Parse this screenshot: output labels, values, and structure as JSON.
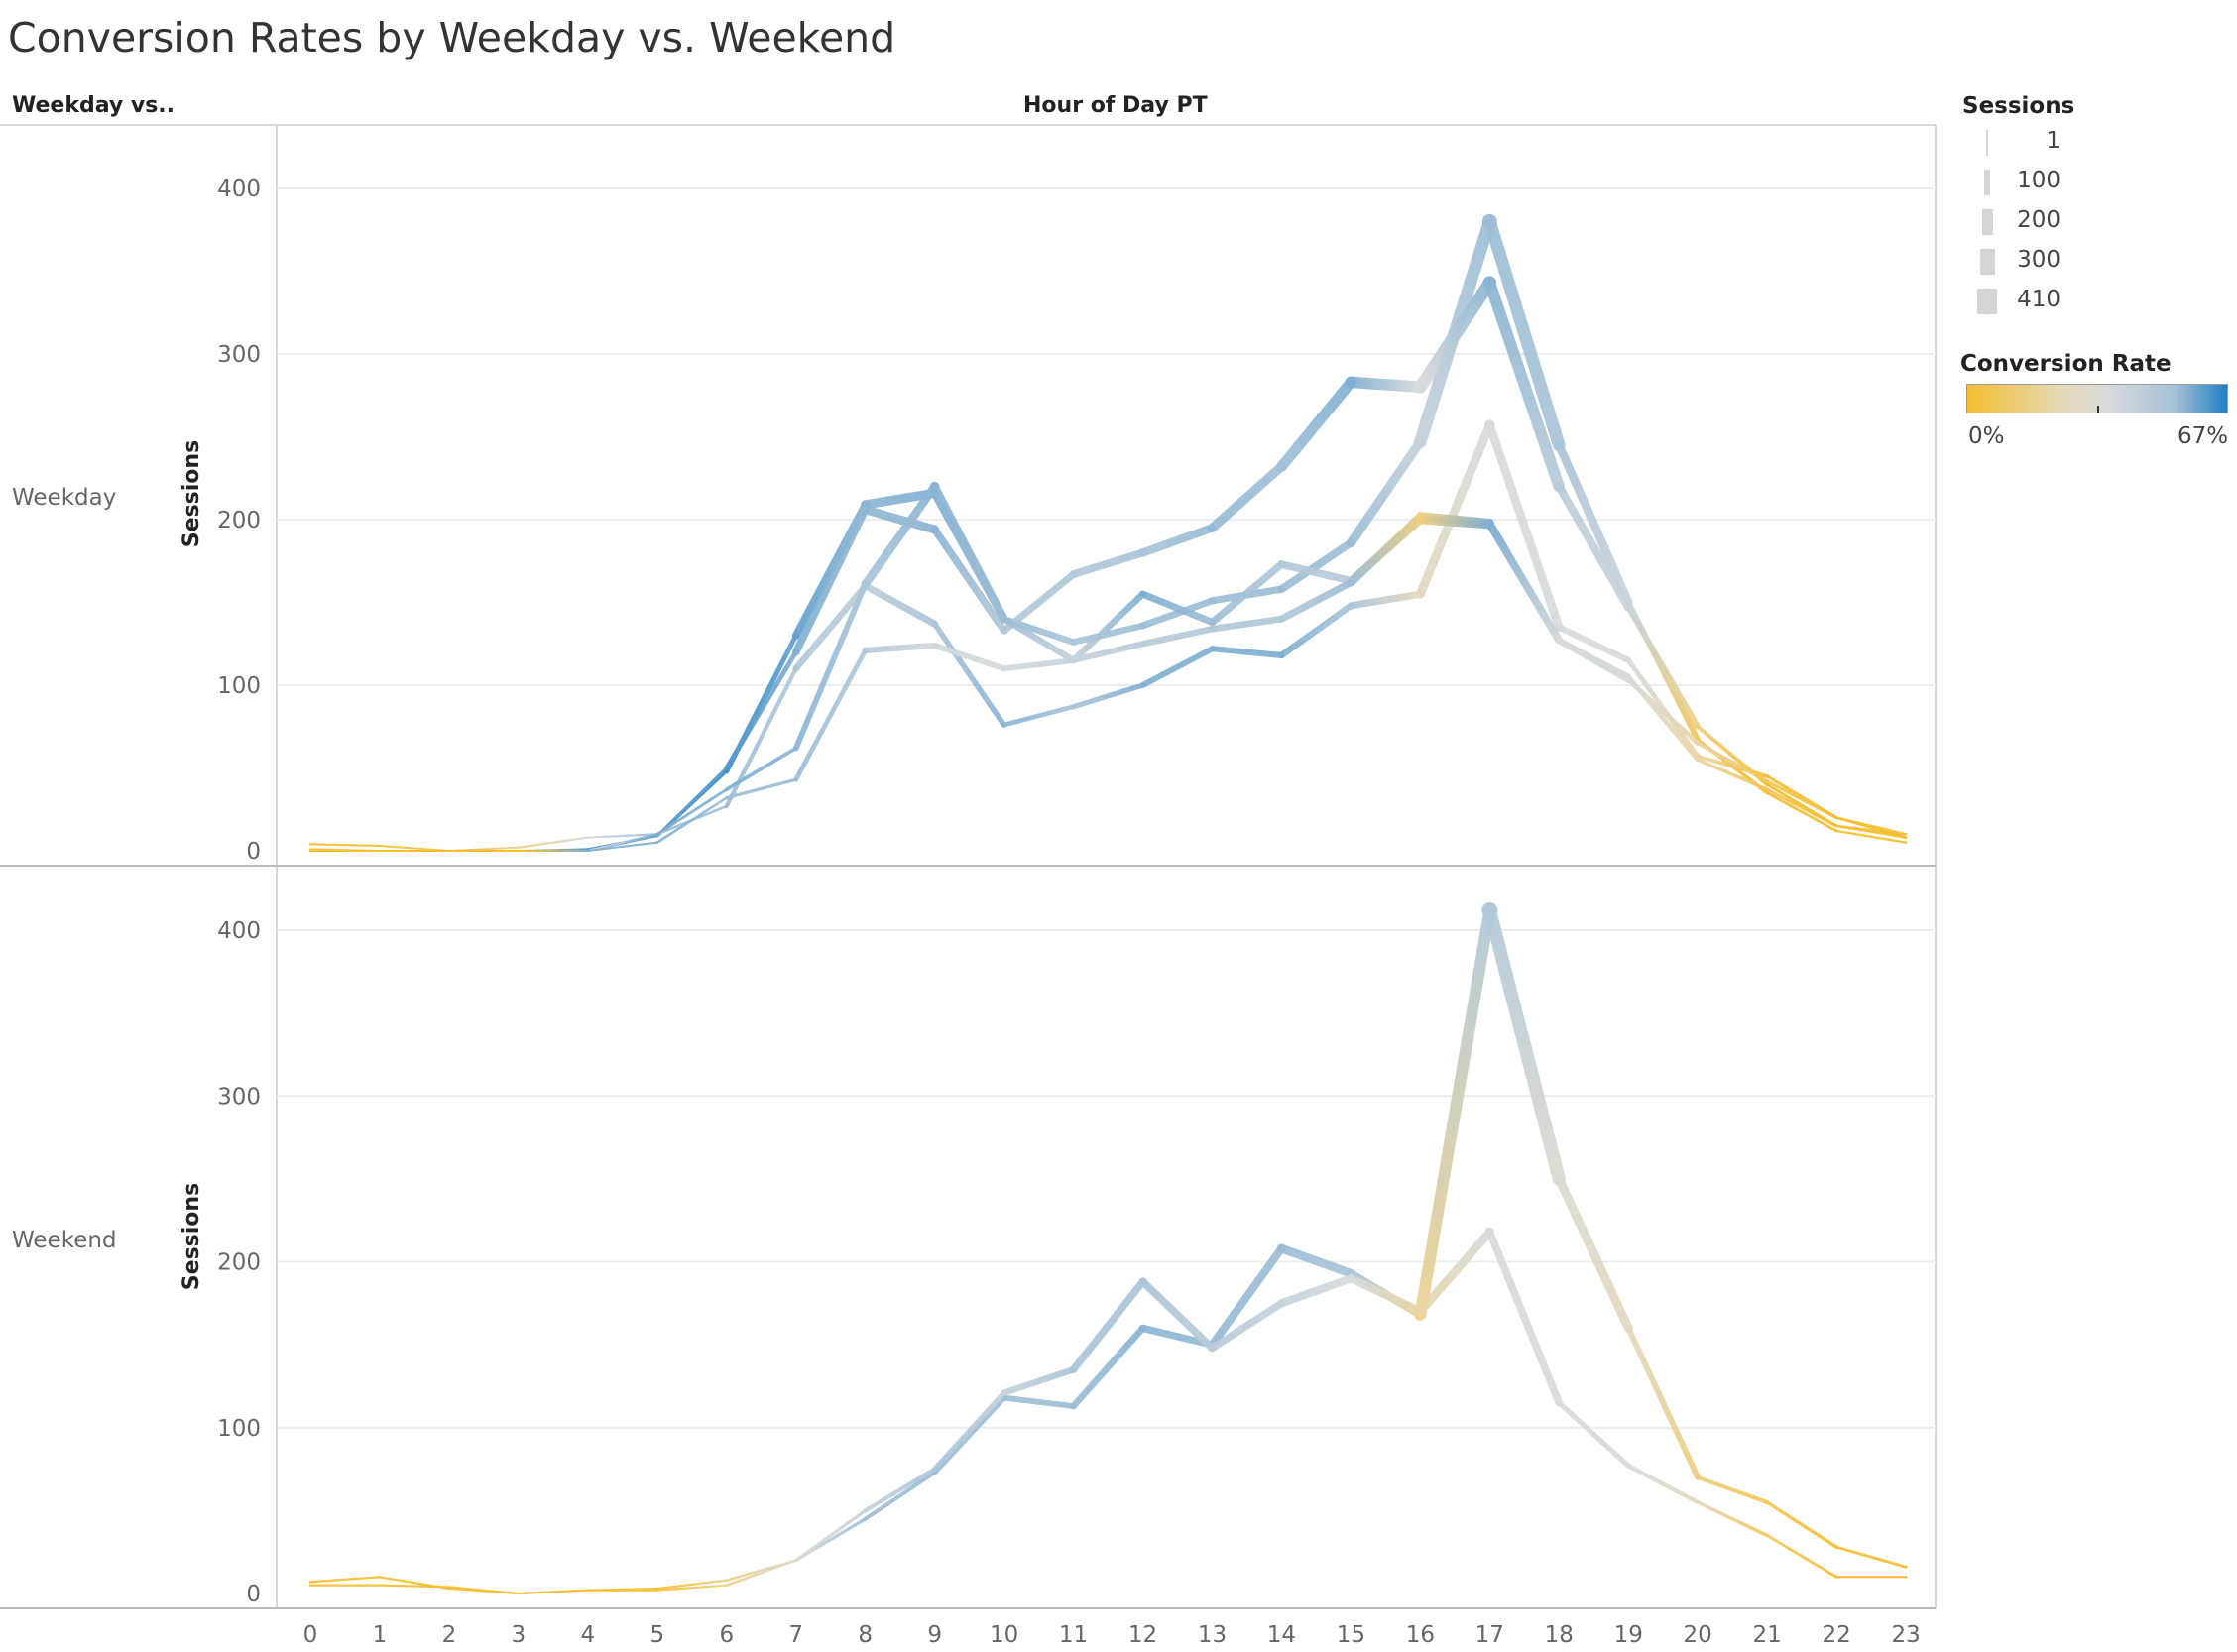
{
  "title": "Conversion Rates by Weekday vs. Weekend",
  "header": {
    "row_dimension": "Weekday vs..",
    "column_dimension": "Hour of Day PT"
  },
  "legend": {
    "size_title": "Sessions",
    "size_items": [
      "1",
      "100",
      "200",
      "300",
      "410"
    ],
    "color_title": "Conversion Rate",
    "color_min_label": "0%",
    "color_max_label": "67%",
    "color_scale": [
      "#f5be30",
      "#e6d8b4",
      "#d6dadc",
      "#a4c1d6",
      "#1f7ec5"
    ]
  },
  "chart_data": {
    "type": "line",
    "x": [
      0,
      1,
      2,
      3,
      4,
      5,
      6,
      7,
      8,
      9,
      10,
      11,
      12,
      13,
      14,
      15,
      16,
      17,
      18,
      19,
      20,
      21,
      22,
      23
    ],
    "x_ticks": [
      "0",
      "1",
      "2",
      "3",
      "4",
      "5",
      "6",
      "7",
      "8",
      "9",
      "10",
      "11",
      "12",
      "13",
      "14",
      "15",
      "16",
      "17",
      "18",
      "19",
      "20",
      "21",
      "22",
      "23"
    ],
    "ylabel": "Sessions",
    "ylim": [
      0,
      400
    ],
    "y_ticks": [
      "0",
      "100",
      "200",
      "300",
      "400"
    ],
    "grid": true,
    "panels": [
      {
        "name": "Weekday",
        "series": [
          {
            "values": [
              4,
              3,
              0,
              0,
              1,
              9,
              48,
              130,
              209,
              216,
              140,
              126,
              136,
              151,
              158,
              186,
              247,
              380,
              245,
              150,
              67,
              35,
              12,
              5
            ],
            "rates": [
              0.0,
              0.0,
              0.0,
              0.0,
              0.6,
              0.6,
              0.62,
              0.55,
              0.48,
              0.5,
              0.45,
              0.42,
              0.45,
              0.45,
              0.45,
              0.45,
              0.35,
              0.45,
              0.42,
              0.34,
              0.05,
              0.0,
              0.0,
              0.0
            ]
          },
          {
            "values": [
              1,
              0,
              0,
              0,
              0,
              9,
              50,
              120,
              206,
              194,
              133,
              167,
              180,
              195,
              232,
              283,
              280,
              343,
              220,
              147,
              75,
              40,
              15,
              10
            ],
            "rates": [
              0.0,
              0.0,
              0.0,
              0.0,
              0.5,
              0.55,
              0.58,
              0.5,
              0.47,
              0.48,
              0.4,
              0.4,
              0.42,
              0.46,
              0.44,
              0.5,
              0.3,
              0.48,
              0.38,
              0.34,
              0.1,
              0.0,
              0.0,
              0.0
            ]
          },
          {
            "values": [
              0,
              0,
              0,
              2,
              8,
              10,
              27,
              110,
              160,
              137,
              76,
              87,
              100,
              122,
              118,
              148,
              155,
              257,
              135,
              115,
              57,
              45,
              20,
              10
            ],
            "rates": [
              0.0,
              0.0,
              0.0,
              0.1,
              0.3,
              0.45,
              0.45,
              0.4,
              0.37,
              0.42,
              0.48,
              0.42,
              0.5,
              0.5,
              0.5,
              0.42,
              0.2,
              0.3,
              0.3,
              0.3,
              0.15,
              0.0,
              0.0,
              0.0
            ]
          },
          {
            "values": [
              0,
              0,
              0,
              0,
              0,
              10,
              37,
              62,
              161,
              220,
              140,
              115,
              155,
              138,
              173,
              163,
              200,
              197,
              127,
              103,
              65,
              42,
              20,
              8
            ],
            "rates": [
              0.0,
              0.0,
              0.0,
              0.0,
              0.3,
              0.5,
              0.5,
              0.48,
              0.42,
              0.48,
              0.45,
              0.35,
              0.5,
              0.45,
              0.4,
              0.38,
              0.1,
              0.5,
              0.35,
              0.3,
              0.15,
              0.05,
              0.0,
              0.0
            ]
          },
          {
            "values": [
              0,
              0,
              0,
              0,
              0,
              5,
              32,
              43,
              121,
              124,
              110,
              115,
              125,
              134,
              140,
              162,
              202,
              198,
              127,
              105,
              55,
              37,
              15,
              8
            ],
            "rates": [
              0.0,
              0.0,
              0.0,
              0.0,
              0.5,
              0.5,
              0.45,
              0.45,
              0.4,
              0.32,
              0.3,
              0.35,
              0.38,
              0.4,
              0.4,
              0.45,
              0.1,
              0.5,
              0.3,
              0.28,
              0.15,
              0.05,
              0.0,
              0.0
            ]
          }
        ]
      },
      {
        "name": "Weekend",
        "series": [
          {
            "values": [
              7,
              10,
              3,
              0,
              2,
              3,
              8,
              20,
              45,
              73,
              118,
              113,
              160,
              150,
              208,
              193,
              168,
              412,
              250,
              160,
              70,
              55,
              28,
              16
            ],
            "rates": [
              0.0,
              0.0,
              0.0,
              0.0,
              0.0,
              0.0,
              0.1,
              0.3,
              0.45,
              0.45,
              0.45,
              0.45,
              0.48,
              0.46,
              0.45,
              0.42,
              0.12,
              0.4,
              0.26,
              0.2,
              0.1,
              0.05,
              0.0,
              0.0
            ]
          },
          {
            "values": [
              5,
              5,
              4,
              0,
              2,
              2,
              5,
              20,
              50,
              75,
              121,
              135,
              188,
              148,
              175,
              190,
              170,
              218,
              115,
              77,
              55,
              35,
              10,
              10
            ],
            "rates": [
              0.0,
              0.0,
              0.0,
              0.0,
              0.0,
              0.0,
              0.1,
              0.25,
              0.35,
              0.42,
              0.35,
              0.42,
              0.42,
              0.38,
              0.35,
              0.3,
              0.15,
              0.3,
              0.3,
              0.3,
              0.2,
              0.05,
              0.0,
              0.0
            ]
          }
        ]
      }
    ]
  }
}
